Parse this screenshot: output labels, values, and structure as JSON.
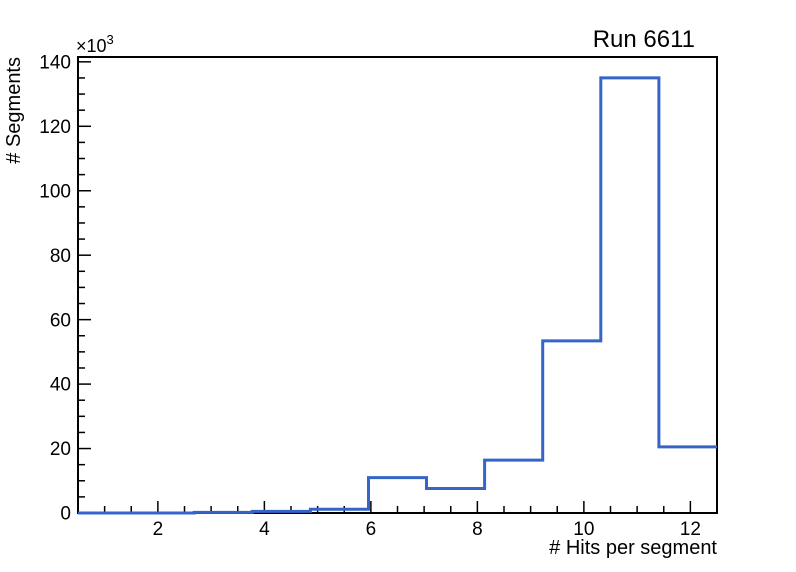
{
  "chart_data": {
    "type": "bar",
    "style": "step-histogram-outline",
    "title": "Run 6611",
    "xlabel": "# Hits per segment",
    "ylabel": "# Segments",
    "y_axis_multiplier": {
      "base": "×10",
      "exponent": "3"
    },
    "xlim": [
      0.5,
      12.5
    ],
    "ylim": [
      0,
      141500
    ],
    "bin_edges": [
      0.5,
      1.5909,
      2.6818,
      3.7727,
      4.8636,
      5.9545,
      7.0455,
      8.1364,
      9.2273,
      10.3182,
      11.4091,
      12.5
    ],
    "values": [
      0,
      0,
      200,
      500,
      1150,
      11000,
      7600,
      16400,
      53400,
      135000,
      20500
    ],
    "x_major_ticks": [
      2,
      4,
      6,
      8,
      10,
      12
    ],
    "x_tick_labels": [
      "2",
      "4",
      "6",
      "8",
      "10",
      "12"
    ],
    "x_minor_start": 1.0,
    "x_minor_step": 0.5,
    "y_major_ticks": [
      0,
      20000,
      40000,
      60000,
      80000,
      100000,
      120000,
      140000
    ],
    "y_tick_labels": [
      "0",
      "20",
      "40",
      "60",
      "80",
      "100",
      "120",
      "140"
    ],
    "y_minor_step": 5000,
    "grid": false,
    "legend": null,
    "colors": {
      "line": "#3565c8",
      "frame": "#000000",
      "background": "#ffffff",
      "text": "#000000"
    }
  }
}
